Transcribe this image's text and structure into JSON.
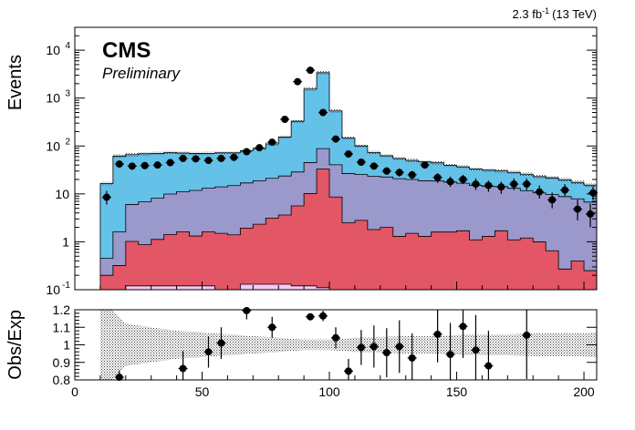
{
  "header": {
    "lumi": "2.3 fb",
    "lumi_exp": "-1",
    "energy": "(13 TeV)"
  },
  "labels": {
    "cms": "CMS",
    "preliminary": "Preliminary"
  },
  "colors": {
    "blue": "#64c1e8",
    "purple": "#9b98cc",
    "red": "#e25665",
    "pink": "#f9c8f2",
    "band": "#000000"
  },
  "chart_data": [
    {
      "type": "area",
      "stacked": true,
      "yscale": "log",
      "ylabel": "Events",
      "xlim": [
        0,
        205
      ],
      "ylim": [
        0.1,
        30000
      ],
      "yticks": [
        {
          "value": 0.1,
          "label": "10",
          "exp": "-1"
        },
        {
          "value": 1,
          "label": "1",
          "exp": ""
        },
        {
          "value": 10,
          "label": "10",
          "exp": ""
        },
        {
          "value": 100,
          "label": "10",
          "exp": "2"
        },
        {
          "value": 1000,
          "label": "10",
          "exp": "3"
        },
        {
          "value": 10000,
          "label": "10",
          "exp": "4"
        }
      ],
      "bin_edges": [
        10,
        15,
        20,
        25,
        30,
        35,
        40,
        45,
        50,
        55,
        60,
        65,
        70,
        75,
        80,
        85,
        90,
        95,
        100,
        105,
        110,
        115,
        120,
        125,
        130,
        135,
        140,
        145,
        150,
        155,
        160,
        165,
        170,
        175,
        180,
        185,
        190,
        195,
        200,
        205
      ],
      "stack": [
        {
          "key": "pink",
          "values": [
            0.1,
            0.1,
            0.12,
            0.12,
            0.12,
            0.12,
            0.12,
            0.12,
            0.12,
            0.1,
            0.1,
            0.13,
            0.13,
            0.13,
            0.13,
            0.12,
            0.12,
            0.11,
            0.1,
            0.1,
            0.1,
            0.1,
            0.1,
            0.1,
            0.1,
            0.1,
            0.1,
            0.1,
            0.1,
            0.1,
            0.1,
            0.1,
            0.1,
            0.1,
            0.1,
            0.1,
            0.1,
            0.1,
            0.1
          ]
        },
        {
          "key": "red",
          "values": [
            0.1,
            0.22,
            0.9,
            0.75,
            1.0,
            1.3,
            1.5,
            1.2,
            1.5,
            1.4,
            1.3,
            1.8,
            2.2,
            3.0,
            3.5,
            5.5,
            10.0,
            33.0,
            8.5,
            2.4,
            2.7,
            1.7,
            1.9,
            1.2,
            1.4,
            1.2,
            1.5,
            1.5,
            1.6,
            1.0,
            1.2,
            1.6,
            1.0,
            1.1,
            0.9,
            0.55,
            0.17,
            0.3,
            0.15
          ]
        },
        {
          "key": "purple",
          "values": [
            0.25,
            1.3,
            5.0,
            6.0,
            7.0,
            8.5,
            9.5,
            10.5,
            11.5,
            12.5,
            13.5,
            15.0,
            16.5,
            18.0,
            20.0,
            23.0,
            35.0,
            55.0,
            32.0,
            24.0,
            22.5,
            21.5,
            20.5,
            19.5,
            18.5,
            17.5,
            17.0,
            16.0,
            15.0,
            14.0,
            13.0,
            12.5,
            12.0,
            10.5,
            9.5,
            9.0,
            8.5,
            7.5,
            6.5
          ]
        },
        {
          "key": "blue",
          "values": [
            16.0,
            60.0,
            60.0,
            62.0,
            62.0,
            63.0,
            60.0,
            58.0,
            57.0,
            58.0,
            57.0,
            63.0,
            70.0,
            90.0,
            130.0,
            300.0,
            1500.0,
            3300.0,
            500.0,
            120.0,
            75.0,
            50.0,
            40.0,
            34.0,
            30.0,
            28.0,
            26.0,
            22.0,
            20.0,
            18.0,
            17.0,
            16.0,
            15.0,
            14.0,
            12.5,
            12.0,
            11.0,
            9.5,
            8.5
          ]
        }
      ],
      "data_points": [
        {
          "x": 12.5,
          "y": 8.5,
          "err": [
            2.5,
            3.0
          ]
        },
        {
          "x": 17.5,
          "y": 42,
          "err": [
            6,
            7
          ]
        },
        {
          "x": 22.5,
          "y": 38,
          "err": [
            6,
            6
          ]
        },
        {
          "x": 27.5,
          "y": 39,
          "err": [
            6,
            6
          ]
        },
        {
          "x": 32.5,
          "y": 40,
          "err": [
            6,
            6
          ]
        },
        {
          "x": 37.5,
          "y": 45,
          "err": [
            7,
            7
          ]
        },
        {
          "x": 42.5,
          "y": 55,
          "err": [
            7,
            7
          ]
        },
        {
          "x": 47.5,
          "y": 54,
          "err": [
            7,
            7
          ]
        },
        {
          "x": 52.5,
          "y": 50,
          "err": [
            7,
            7
          ]
        },
        {
          "x": 57.5,
          "y": 55,
          "err": [
            7,
            7
          ]
        },
        {
          "x": 62.5,
          "y": 58,
          "err": [
            7,
            8
          ]
        },
        {
          "x": 67.5,
          "y": 76,
          "err": [
            8,
            9
          ]
        },
        {
          "x": 72.5,
          "y": 92,
          "err": [
            9,
            10
          ]
        },
        {
          "x": 77.5,
          "y": 120,
          "err": [
            10,
            11
          ]
        },
        {
          "x": 82.5,
          "y": 360,
          "err": [
            19,
            19
          ]
        },
        {
          "x": 87.5,
          "y": 2200,
          "err": [
            47,
            47
          ]
        },
        {
          "x": 92.5,
          "y": 3800,
          "err": [
            62,
            62
          ]
        },
        {
          "x": 97.5,
          "y": 500,
          "err": [
            22,
            22
          ]
        },
        {
          "x": 102.5,
          "y": 140,
          "err": [
            12,
            12
          ]
        },
        {
          "x": 107.5,
          "y": 68,
          "err": [
            8,
            9
          ]
        },
        {
          "x": 112.5,
          "y": 46,
          "err": [
            7,
            7
          ]
        },
        {
          "x": 117.5,
          "y": 38,
          "err": [
            6,
            6
          ]
        },
        {
          "x": 122.5,
          "y": 30,
          "err": [
            5,
            6
          ]
        },
        {
          "x": 127.5,
          "y": 28,
          "err": [
            5,
            6
          ]
        },
        {
          "x": 132.5,
          "y": 25,
          "err": [
            5,
            5
          ]
        },
        {
          "x": 137.5,
          "y": 40,
          "err": [
            6,
            7
          ]
        },
        {
          "x": 142.5,
          "y": 22,
          "err": [
            5,
            5
          ]
        },
        {
          "x": 147.5,
          "y": 18,
          "err": [
            4,
            5
          ]
        },
        {
          "x": 152.5,
          "y": 20,
          "err": [
            4,
            5
          ]
        },
        {
          "x": 157.5,
          "y": 16,
          "err": [
            4,
            5
          ]
        },
        {
          "x": 162.5,
          "y": 15,
          "err": [
            4,
            4
          ]
        },
        {
          "x": 167.5,
          "y": 14,
          "err": [
            4,
            4
          ]
        },
        {
          "x": 172.5,
          "y": 16,
          "err": [
            4,
            5
          ]
        },
        {
          "x": 177.5,
          "y": 16,
          "err": [
            4,
            5
          ]
        },
        {
          "x": 182.5,
          "y": 11,
          "err": [
            3,
            4
          ]
        },
        {
          "x": 187.5,
          "y": 7.5,
          "err": [
            2.5,
            3.2
          ]
        },
        {
          "x": 192.5,
          "y": 12,
          "err": [
            3,
            4
          ]
        },
        {
          "x": 197.5,
          "y": 4.8,
          "err": [
            2,
            2.8
          ]
        },
        {
          "x": 202.5,
          "y": 3.8,
          "err": [
            1.8,
            2.5
          ]
        },
        {
          "x": 205,
          "y": 10.5,
          "err": [
            3,
            4
          ]
        }
      ]
    },
    {
      "type": "scatter",
      "ylabel": "Obs/Exp",
      "xlim": [
        0,
        205
      ],
      "ylim": [
        0.8,
        1.2
      ],
      "xticks": [
        0,
        50,
        100,
        150,
        200
      ],
      "yticks": [
        0.8,
        0.9,
        1,
        1.1,
        1.2
      ],
      "band_x": [
        10,
        15,
        20,
        30,
        40,
        50,
        60,
        70,
        80,
        90,
        100,
        110,
        120,
        130,
        140,
        150,
        160,
        170,
        180,
        190,
        205
      ],
      "band_lo": [
        0.8,
        0.8,
        0.88,
        0.9,
        0.92,
        0.93,
        0.94,
        0.95,
        0.96,
        0.97,
        0.97,
        0.96,
        0.955,
        0.95,
        0.95,
        0.945,
        0.94,
        0.94,
        0.935,
        0.935,
        0.93
      ],
      "band_hi": [
        1.2,
        1.2,
        1.12,
        1.1,
        1.08,
        1.07,
        1.06,
        1.05,
        1.04,
        1.03,
        1.03,
        1.04,
        1.045,
        1.05,
        1.05,
        1.055,
        1.06,
        1.06,
        1.065,
        1.065,
        1.07
      ],
      "points": [
        {
          "x": 17.5,
          "y": 0.815,
          "err": 0.04
        },
        {
          "x": 42.5,
          "y": 0.865,
          "err": 0.1
        },
        {
          "x": 52.5,
          "y": 0.96,
          "err": 0.09
        },
        {
          "x": 57.5,
          "y": 1.01,
          "err": 0.09
        },
        {
          "x": 67.5,
          "y": 1.195,
          "err": 0.05
        },
        {
          "x": 77.5,
          "y": 1.1,
          "err": 0.06
        },
        {
          "x": 92.5,
          "y": 1.16,
          "err": 0.015
        },
        {
          "x": 97.5,
          "y": 1.165,
          "err": 0.03
        },
        {
          "x": 102.5,
          "y": 1.04,
          "err": 0.06
        },
        {
          "x": 107.5,
          "y": 0.85,
          "err": 0.07
        },
        {
          "x": 112.5,
          "y": 0.985,
          "err": 0.1
        },
        {
          "x": 117.5,
          "y": 0.99,
          "err": 0.12
        },
        {
          "x": 122.5,
          "y": 0.955,
          "err": 0.14
        },
        {
          "x": 127.5,
          "y": 0.99,
          "err": 0.15
        },
        {
          "x": 132.5,
          "y": 0.925,
          "err": 0.14
        },
        {
          "x": 142.5,
          "y": 1.06,
          "err": 0.16
        },
        {
          "x": 147.5,
          "y": 0.945,
          "err": 0.18
        },
        {
          "x": 152.5,
          "y": 1.105,
          "err": 0.18
        },
        {
          "x": 157.5,
          "y": 0.97,
          "err": 0.2
        },
        {
          "x": 162.5,
          "y": 0.88,
          "err": 0.2
        },
        {
          "x": 177.5,
          "y": 1.055,
          "err": 0.25
        }
      ]
    }
  ]
}
